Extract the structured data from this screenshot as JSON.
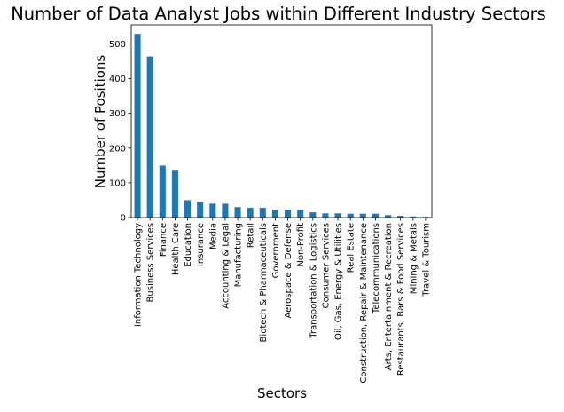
{
  "chart_data": {
    "type": "bar",
    "title": "Number of Data Analyst Jobs within Different Industry Sectors",
    "xlabel": "Sectors",
    "ylabel": "Number of Positions",
    "ylim": [
      0,
      555
    ],
    "yticks": [
      0,
      100,
      200,
      300,
      400,
      500
    ],
    "grid": false,
    "legend": "none",
    "bar_color": "#1f77b4",
    "categories": [
      "Information Technology",
      "Business Services",
      "Finance",
      "Health Care",
      "Education",
      "Insurance",
      "Media",
      "Accounting & Legal",
      "Manufacturing",
      "Retail",
      "Biotech & Pharmaceuticals",
      "Government",
      "Aerospace & Defense",
      "Non-Profit",
      "Transportation & Logistics",
      "Consumer Services",
      "Oil, Gas, Energy & Utilities",
      "Real Estate",
      "Construction, Repair & Maintenance",
      "Telecommunications",
      "Arts, Entertainment & Recreation",
      "Restaurants, Bars & Food Services",
      "Mining & Metals",
      "Travel & Tourism"
    ],
    "values": [
      529,
      464,
      150,
      135,
      50,
      45,
      40,
      40,
      30,
      28,
      28,
      22,
      22,
      22,
      15,
      12,
      12,
      11,
      11,
      11,
      7,
      5,
      3,
      2
    ]
  }
}
